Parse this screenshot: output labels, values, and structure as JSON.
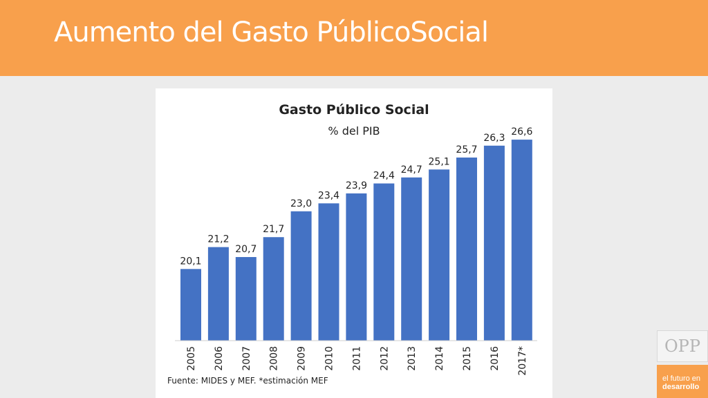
{
  "slide": {
    "title": "Aumento del Gasto PúblicoSocial"
  },
  "colors": {
    "header": "#f8a04c",
    "bar": "#4472c4",
    "background": "#ececec"
  },
  "chart_data": {
    "type": "bar",
    "title": "Gasto Público Social",
    "subtitle": "% del PIB",
    "categories": [
      "2005",
      "2006",
      "2007",
      "2008",
      "2009",
      "2010",
      "2011",
      "2012",
      "2013",
      "2014",
      "2015",
      "2016",
      "2017*"
    ],
    "values": [
      20.1,
      21.2,
      20.7,
      21.7,
      23.0,
      23.4,
      23.9,
      24.4,
      24.7,
      25.1,
      25.7,
      26.3,
      26.6
    ],
    "data_labels": [
      "20,1",
      "21,2",
      "20,7",
      "21,7",
      "23,0",
      "23,4",
      "23,9",
      "24,4",
      "24,7",
      "25,1",
      "25,7",
      "26,3",
      "26,6"
    ],
    "xlabel": "",
    "ylabel": "",
    "grid": false,
    "legend": "none",
    "source": "Fuente: MIDES y MEF. *estimación MEF"
  },
  "branding": {
    "logo": "OPP",
    "tagline_line1": "el futuro en",
    "tagline_line2": "desarrollo"
  }
}
